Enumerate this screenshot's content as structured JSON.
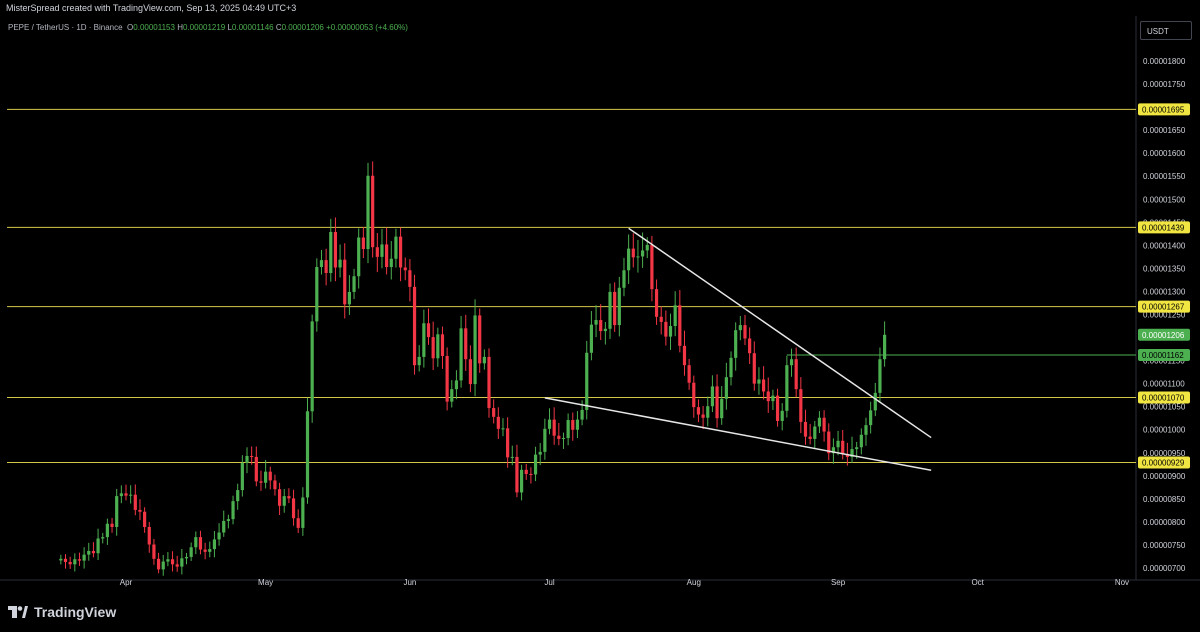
{
  "header": {
    "credit": "MisterSpread created with TradingView.com, Sep 13, 2025 04:49 UTC+3"
  },
  "legend": {
    "symbol": "PEPE / TetherUS · 1D · Binance",
    "open_label": "O",
    "open": "0.00001153",
    "high_label": "H",
    "high": "0.00001219",
    "low_label": "L",
    "low": "0.00001146",
    "close_label": "C",
    "close": "0.00001206",
    "change": "+0.00000053 (+4.60%)"
  },
  "currency_button": "USDT",
  "footer": {
    "brand": "TradingView"
  },
  "colors": {
    "up": "#4caf50",
    "down": "#f23645",
    "level": "#d4c84a",
    "trendline": "#e6e6e6",
    "last_price_bg": "#4caf50",
    "level_label_bg": "#f1e641"
  },
  "chart_data": {
    "type": "candlestick",
    "interval": "1D",
    "scale": "linear",
    "grid": false,
    "x_axis_ticks": [
      "Apr",
      "May",
      "Jun",
      "Jul",
      "Aug",
      "Sep",
      "Oct",
      "Nov"
    ],
    "y_axis_ticks": [
      "0.00001800",
      "0.00001750",
      "0.00001700",
      "0.00001650",
      "0.00001600",
      "0.00001550",
      "0.00001500",
      "0.00001450",
      "0.00001400",
      "0.00001350",
      "0.00001300",
      "0.00001250",
      "0.00001200",
      "0.00001150",
      "0.00001100",
      "0.00001050",
      "0.00001000",
      "0.00000950",
      "0.00000900",
      "0.00000850",
      "0.00000800",
      "0.00000750",
      "0.00000700"
    ],
    "ylim": [
      6.8e-06,
      1.88e-05
    ],
    "horizontal_levels": [
      {
        "value": 1.695e-05,
        "label": "0.00001695"
      },
      {
        "value": 1.439e-05,
        "label": "0.00001439"
      },
      {
        "value": 1.267e-05,
        "label": "0.00001267"
      },
      {
        "value": 1.07e-05,
        "label": "0.00001070"
      },
      {
        "value": 9.29e-06,
        "label": "0.00000929"
      }
    ],
    "resistance_segment": {
      "value": 1.162e-05,
      "label": "0.00001162",
      "from": "2025-08-21"
    },
    "last_price": {
      "value": 1.206e-05,
      "label": "0.00001206"
    },
    "trendlines": [
      {
        "from": {
          "date": "2025-07-18",
          "value": 1.437e-05
        },
        "to": {
          "date": "2025-09-21",
          "value": 9.83e-06
        }
      },
      {
        "from": {
          "date": "2025-06-30",
          "value": 1.069e-05
        },
        "to": {
          "date": "2025-09-21",
          "value": 9.12e-06
        }
      }
    ],
    "close_series": {
      "start_date": "2025-03-18",
      "closes": [
        7.2e-06,
        7.13e-06,
        7.08e-06,
        7.19e-06,
        7.16e-06,
        7.29e-06,
        7.37e-06,
        7.32e-06,
        7.64e-06,
        7.67e-06,
        7.96e-06,
        7.89e-06,
        8.56e-06,
        8.62e-06,
        8.57e-06,
        8.59e-06,
        8.26e-06,
        8.22e-06,
        7.89e-06,
        7.51e-06,
        7.2e-06,
        6.97e-06,
        7.14e-06,
        7.19e-06,
        7.08e-06,
        7.03e-06,
        7.21e-06,
        7.24e-06,
        7.45e-06,
        7.67e-06,
        7.4e-06,
        7.35e-06,
        7.41e-06,
        7.62e-06,
        7.77e-06,
        8.02e-06,
        8.06e-06,
        8.45e-06,
        8.69e-06,
        9.28e-06,
        9.43e-06,
        9.41e-06,
        8.88e-06,
        8.85e-06,
        9.09e-06,
        8.9e-06,
        8.71e-06,
        8.35e-06,
        8.56e-06,
        8.51e-06,
        8.08e-06,
        7.87e-06,
        8.53e-06,
        1.04e-05,
        1.235e-05,
        1.353e-05,
        1.368e-05,
        1.34e-05,
        1.429e-05,
        1.352e-05,
        1.369e-05,
        1.272e-05,
        1.299e-05,
        1.333e-05,
        1.417e-05,
        1.392e-05,
        1.551e-05,
        1.396e-05,
        1.375e-05,
        1.402e-05,
        1.353e-05,
        1.371e-05,
        1.419e-05,
        1.352e-05,
        1.346e-05,
        1.31e-05,
        1.14e-05,
        1.158e-05,
        1.231e-05,
        1.201e-05,
        1.155e-05,
        1.207e-05,
        1.16e-05,
        1.061e-05,
        1.088e-05,
        1.107e-05,
        1.22e-05,
        1.153e-05,
        1.099e-05,
        1.248e-05,
        1.144e-05,
        1.158e-05,
        1.047e-05,
        1.028e-05,
        1.002e-05,
        1.003e-05,
        9.4e-06,
        9.41e-06,
        8.64e-06,
        9.13e-06,
        9.04e-06,
        9.03e-06,
        9.46e-06,
        9.52e-06,
        1.002e-05,
        1.022e-05,
        9.87e-06,
        9.8e-06,
        9.82e-06,
        1.021e-05,
        1e-05,
        1.022e-05,
        1.043e-05,
        1.167e-05,
        1.228e-05,
        1.238e-05,
        1.214e-05,
        1.219e-05,
        1.299e-05,
        1.227e-05,
        1.308e-05,
        1.346e-05,
        1.393e-05,
        1.374e-05,
        1.376e-05,
        1.389e-05,
        1.401e-05,
        1.305e-05,
        1.245e-05,
        1.234e-05,
        1.202e-05,
        1.225e-05,
        1.27e-05,
        1.182e-05,
        1.14e-05,
        1.102e-05,
        1.049e-05,
        1.033e-05,
        1.026e-05,
        1.051e-05,
        1.094e-05,
        1.025e-05,
        1.067e-05,
        1.114e-05,
        1.156e-05,
        1.216e-05,
        1.227e-05,
        1.198e-05,
        1.166e-05,
        1.1e-05,
        1.109e-05,
        1.083e-05,
        1.062e-05,
        1.074e-05,
        1.019e-05,
        1.041e-05,
        1.14e-05,
        1.153e-05,
        1.088e-05,
        1.017e-05,
        9.85e-06,
        9.8e-06,
        1.007e-05,
        1.026e-05,
        9.96e-06,
        9.49e-06,
        9.62e-06,
        9.76e-06,
        9.47e-06,
        9.41e-06,
        9.58e-06,
        9.62e-06,
        9.89e-06,
        1.01e-05,
        1.042e-05,
        1.08e-05,
        1.153e-05,
        1.206e-05
      ]
    }
  }
}
